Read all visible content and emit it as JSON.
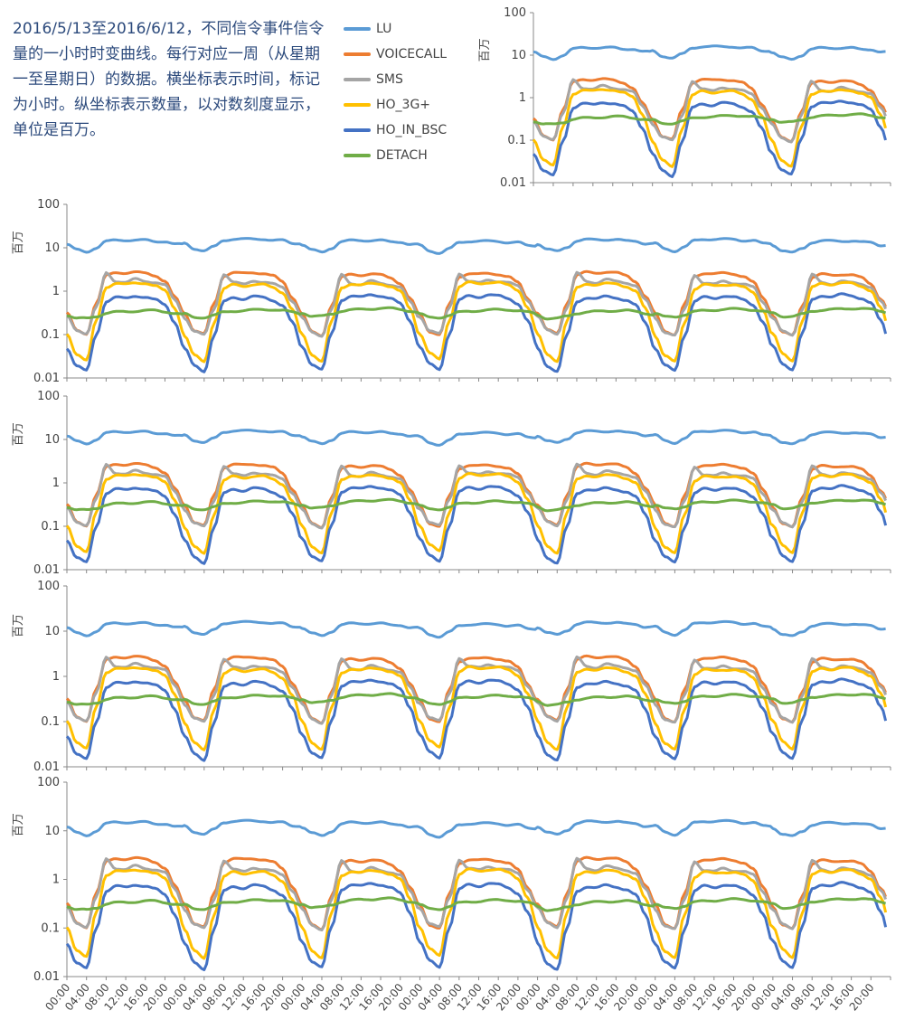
{
  "description": "2016/5/13至2016/6/12，不同信令事件信令量的一小时时变曲线。每行对应一周（从星期一至星期日）的数据。横坐标表示时间，标记为小时。纵坐标表示数量，以对数刻度显示，单位是百万。",
  "legend": [
    {
      "name": "LU",
      "color": "#5b9bd5"
    },
    {
      "name": "VOICECALL",
      "color": "#ed7d31"
    },
    {
      "name": "SMS",
      "color": "#a5a5a5"
    },
    {
      "name": "HO_3G+",
      "color": "#ffc000"
    },
    {
      "name": "HO_IN_BSC",
      "color": "#4472c4"
    },
    {
      "name": "DETACH",
      "color": "#70ad47"
    }
  ],
  "chart_data": {
    "type": "line",
    "yscale": "log",
    "ylabel": "百万",
    "ylim": [
      0.01,
      100
    ],
    "yticks": [
      "0.01",
      "0.1",
      "1",
      "10",
      "100"
    ],
    "xticks": [
      "00:00",
      "04:00",
      "08:00",
      "12:00",
      "16:00",
      "20:00"
    ],
    "hourly_profile_typical_day": {
      "x_hours": [
        0,
        2,
        4,
        6,
        8,
        10,
        12,
        14,
        16,
        18,
        20,
        22
      ],
      "series": [
        {
          "name": "LU",
          "values": [
            12,
            9,
            8,
            10,
            14,
            15,
            15,
            15,
            15,
            14,
            14,
            12
          ]
        },
        {
          "name": "VOICECALL",
          "values": [
            0.3,
            0.12,
            0.1,
            0.5,
            2.2,
            2.6,
            2.5,
            2.6,
            2.5,
            2.2,
            1.6,
            0.7
          ]
        },
        {
          "name": "SMS",
          "values": [
            0.25,
            0.12,
            0.1,
            0.4,
            2.5,
            1.6,
            1.5,
            1.8,
            1.6,
            1.5,
            1.3,
            0.6
          ]
        },
        {
          "name": "HO_3G+",
          "values": [
            0.1,
            0.035,
            0.025,
            0.2,
            1.2,
            1.5,
            1.4,
            1.5,
            1.5,
            1.3,
            1.0,
            0.4
          ]
        },
        {
          "name": "HO_IN_BSC",
          "values": [
            0.05,
            0.02,
            0.015,
            0.1,
            0.6,
            0.75,
            0.7,
            0.8,
            0.75,
            0.65,
            0.5,
            0.2
          ]
        },
        {
          "name": "DETACH",
          "values": [
            0.3,
            0.25,
            0.25,
            0.28,
            0.33,
            0.35,
            0.36,
            0.37,
            0.38,
            0.38,
            0.36,
            0.33
          ]
        }
      ]
    },
    "rows": [
      {
        "row": 1,
        "days": 3,
        "first_weekday": 5
      },
      {
        "row": 2,
        "days": 7,
        "first_weekday": 1
      },
      {
        "row": 3,
        "days": 7,
        "first_weekday": 1
      },
      {
        "row": 4,
        "days": 7,
        "first_weekday": 1
      },
      {
        "row": 5,
        "days": 7,
        "first_weekday": 1
      }
    ]
  }
}
